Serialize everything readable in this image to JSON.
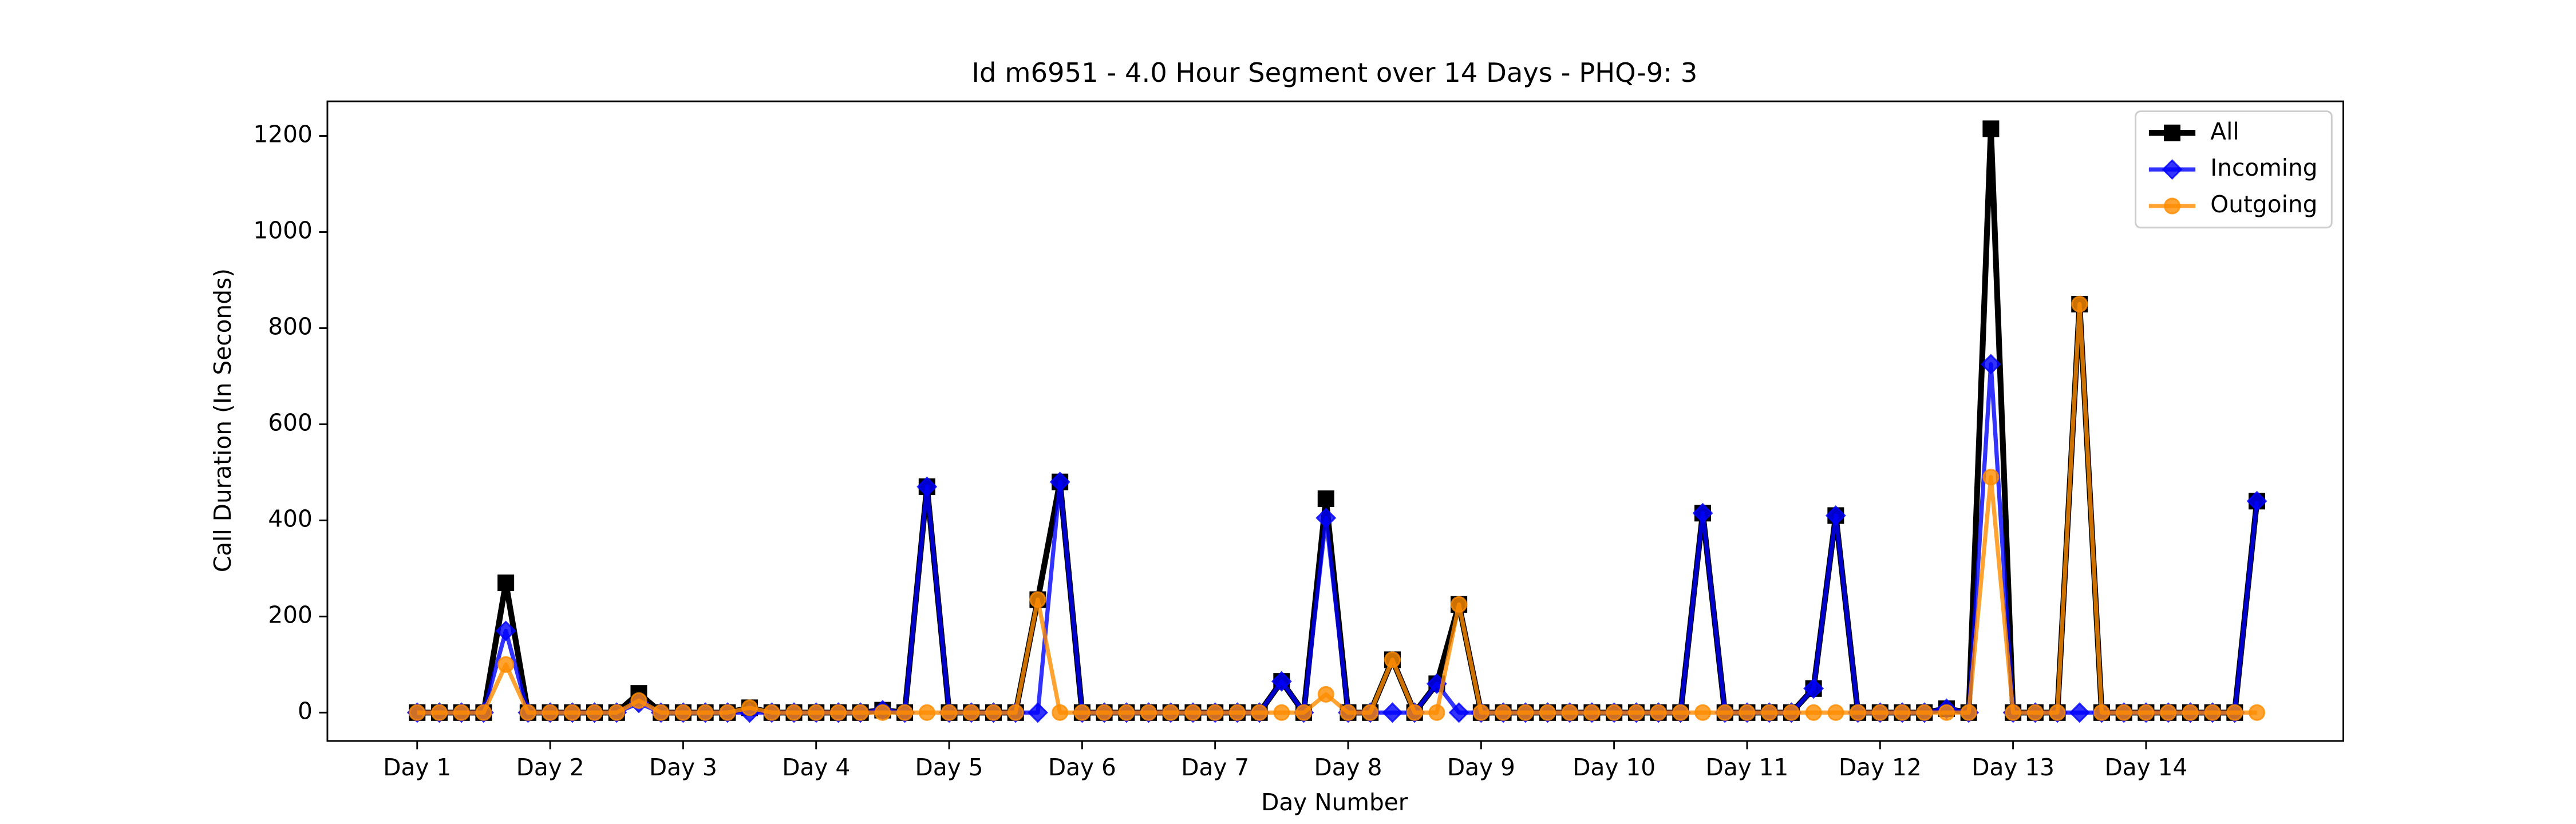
{
  "chart_data": {
    "type": "line",
    "title": "Id m6951 - 4.0 Hour Segment over 14 Days - PHQ-9: 3",
    "x_label": "Day Number",
    "y_label": "Call Duration (In Seconds)",
    "x": [
      0,
      1,
      2,
      3,
      4,
      5,
      6,
      7,
      8,
      9,
      10,
      11,
      12,
      13,
      14,
      15,
      16,
      17,
      18,
      19,
      20,
      21,
      22,
      23,
      24,
      25,
      26,
      27,
      28,
      29,
      30,
      31,
      32,
      33,
      34,
      35,
      36,
      37,
      38,
      39,
      40,
      41,
      42,
      43,
      44,
      45,
      46,
      47,
      48,
      49,
      50,
      51,
      52,
      53,
      54,
      55,
      56,
      57,
      58,
      59,
      60,
      61,
      62,
      63,
      64,
      65,
      66,
      67,
      68,
      69,
      70,
      71,
      72,
      73,
      74,
      75,
      76,
      77,
      78,
      79,
      80,
      81,
      82,
      83
    ],
    "xlim": [
      -4.05,
      86.9
    ],
    "xticks": [
      {
        "value": 0,
        "label": "Day 1"
      },
      {
        "value": 6,
        "label": "Day 2"
      },
      {
        "value": 12,
        "label": "Day 3"
      },
      {
        "value": 18,
        "label": "Day 4"
      },
      {
        "value": 24,
        "label": "Day 5"
      },
      {
        "value": 30,
        "label": "Day 6"
      },
      {
        "value": 36,
        "label": "Day 7"
      },
      {
        "value": 42,
        "label": "Day 8"
      },
      {
        "value": 48,
        "label": "Day 9"
      },
      {
        "value": 54,
        "label": "Day 10"
      },
      {
        "value": 60,
        "label": "Day 11"
      },
      {
        "value": 66,
        "label": "Day 12"
      },
      {
        "value": 72,
        "label": "Day 13"
      },
      {
        "value": 78,
        "label": "Day 14"
      }
    ],
    "ylim": [
      -59,
      1272
    ],
    "yticks": [
      0,
      200,
      400,
      600,
      800,
      1000,
      1200
    ],
    "legend": "upper right",
    "series": [
      {
        "name": "All",
        "color": "#000000",
        "marker": "square",
        "values": [
          0,
          0,
          0,
          0,
          270,
          0,
          0,
          0,
          0,
          0,
          40,
          0,
          0,
          0,
          0,
          10,
          0,
          0,
          0,
          0,
          0,
          5,
          0,
          470,
          0,
          0,
          0,
          0,
          235,
          480,
          0,
          0,
          0,
          0,
          0,
          0,
          0,
          0,
          0,
          65,
          0,
          445,
          0,
          0,
          110,
          0,
          60,
          225,
          0,
          0,
          0,
          0,
          0,
          0,
          0,
          0,
          0,
          0,
          415,
          0,
          0,
          0,
          0,
          50,
          410,
          0,
          0,
          0,
          0,
          8,
          0,
          1215,
          0,
          0,
          0,
          850,
          0,
          0,
          0,
          0,
          0,
          0,
          0,
          440
        ]
      },
      {
        "name": "Incoming",
        "color": "#0000ff",
        "marker": "diamond",
        "values": [
          0,
          0,
          0,
          0,
          170,
          0,
          0,
          0,
          0,
          0,
          20,
          0,
          0,
          0,
          0,
          0,
          0,
          0,
          0,
          0,
          0,
          5,
          0,
          470,
          0,
          0,
          0,
          0,
          0,
          480,
          0,
          0,
          0,
          0,
          0,
          0,
          0,
          0,
          0,
          65,
          0,
          405,
          0,
          0,
          0,
          0,
          60,
          0,
          0,
          0,
          0,
          0,
          0,
          0,
          0,
          0,
          0,
          0,
          415,
          0,
          0,
          0,
          0,
          50,
          410,
          0,
          0,
          0,
          0,
          8,
          0,
          725,
          0,
          0,
          0,
          0,
          0,
          0,
          0,
          0,
          0,
          0,
          0,
          440
        ]
      },
      {
        "name": "Outgoing",
        "color": "#ff8c00",
        "marker": "circle",
        "values": [
          0,
          0,
          0,
          0,
          100,
          0,
          0,
          0,
          0,
          0,
          25,
          0,
          0,
          0,
          0,
          10,
          0,
          0,
          0,
          0,
          0,
          0,
          0,
          0,
          0,
          0,
          0,
          0,
          235,
          0,
          0,
          0,
          0,
          0,
          0,
          0,
          0,
          0,
          0,
          0,
          0,
          38,
          0,
          0,
          110,
          0,
          0,
          225,
          0,
          0,
          0,
          0,
          0,
          0,
          0,
          0,
          0,
          0,
          0,
          0,
          0,
          0,
          0,
          0,
          0,
          0,
          0,
          0,
          0,
          0,
          0,
          490,
          0,
          0,
          0,
          850,
          0,
          0,
          0,
          0,
          0,
          0,
          0,
          0
        ]
      }
    ]
  }
}
